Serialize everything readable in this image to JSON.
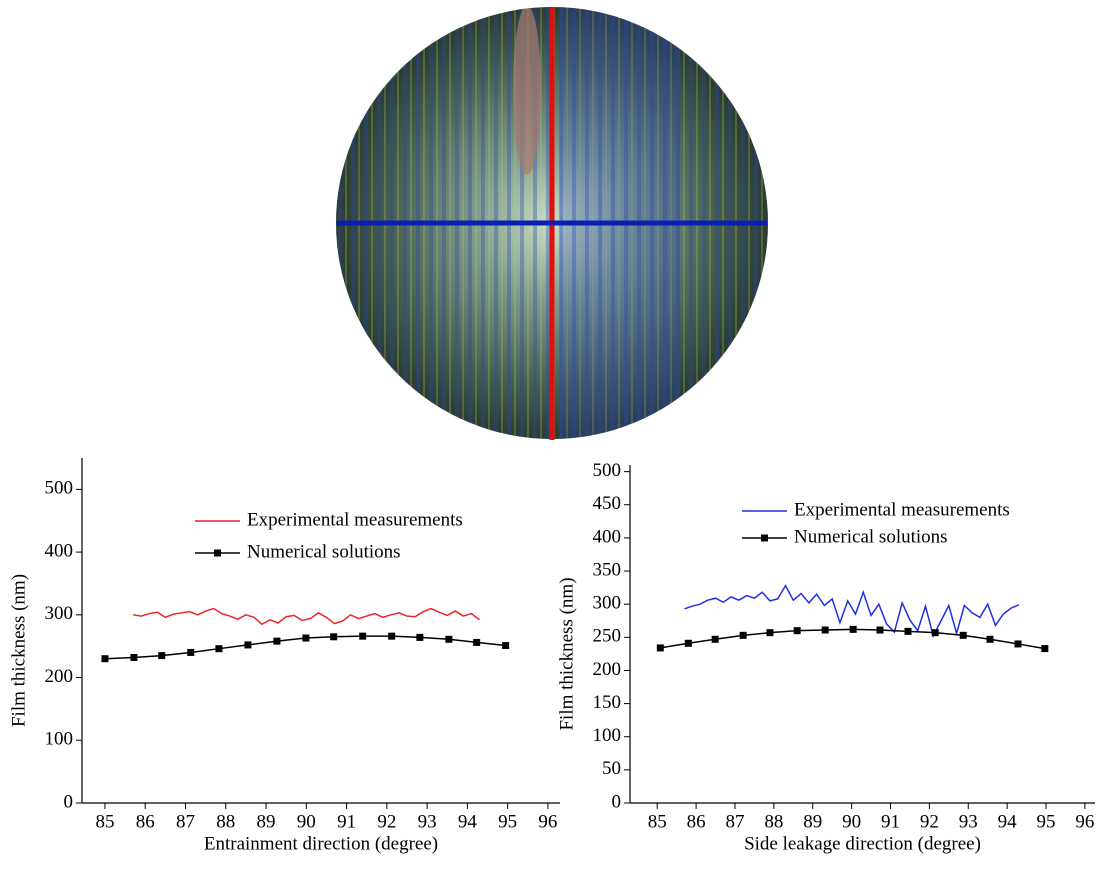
{
  "chart_data": [
    {
      "type": "line",
      "xlabel": "Entrainment direction (degree)",
      "ylabel": "Film thickness (nm)",
      "xlim": [
        84.43,
        96.3
      ],
      "ylim": [
        0,
        550
      ],
      "xticks": [
        85,
        86,
        87,
        88,
        89,
        90,
        91,
        92,
        93,
        94,
        95,
        96
      ],
      "yticks": [
        0,
        100,
        200,
        300,
        400,
        500
      ],
      "legend": "upper center",
      "series": [
        {
          "name": "Experimental measurements",
          "color": "#e8242a",
          "marker": "none",
          "x": [
            85.7,
            85.9,
            86.1,
            86.3,
            86.5,
            86.7,
            86.9,
            87.1,
            87.3,
            87.5,
            87.7,
            87.9,
            88.1,
            88.3,
            88.5,
            88.7,
            88.9,
            89.1,
            89.3,
            89.5,
            89.7,
            89.9,
            90.1,
            90.3,
            90.5,
            90.7,
            90.9,
            91.1,
            91.3,
            91.5,
            91.7,
            91.9,
            92.1,
            92.3,
            92.5,
            92.7,
            92.9,
            93.1,
            93.3,
            93.5,
            93.7,
            93.9,
            94.1,
            94.3
          ],
          "values": [
            300,
            298,
            302,
            304,
            296,
            301,
            303,
            305,
            300,
            306,
            310,
            302,
            298,
            293,
            300,
            296,
            285,
            292,
            287,
            297,
            299,
            291,
            294,
            303,
            296,
            286,
            290,
            300,
            294,
            298,
            302,
            296,
            300,
            303,
            298,
            297,
            305,
            310,
            304,
            299,
            306,
            298,
            302,
            292
          ]
        },
        {
          "name": "Numerical solutions",
          "color": "#000000",
          "marker": "square",
          "x": [
            85.0,
            85.72,
            86.41,
            87.13,
            87.83,
            88.55,
            89.27,
            89.99,
            90.68,
            91.4,
            92.12,
            92.82,
            93.54,
            94.23,
            94.95
          ],
          "values": [
            230,
            232,
            235,
            240,
            246,
            252,
            258,
            263,
            265,
            266,
            266,
            264,
            261,
            256,
            251
          ]
        }
      ]
    },
    {
      "type": "line",
      "xlabel": "Side leakage direction (degree)",
      "ylabel": "Film thickness (nm)",
      "xlim": [
        84.3,
        96.26
      ],
      "ylim": [
        0,
        510
      ],
      "xticks": [
        85,
        86,
        87,
        88,
        89,
        90,
        91,
        92,
        93,
        94,
        95,
        96
      ],
      "yticks": [
        0,
        50,
        100,
        150,
        200,
        250,
        300,
        350,
        400,
        450,
        500
      ],
      "legend": "upper center",
      "series": [
        {
          "name": "Experimental measurements",
          "color": "#1f2fe0",
          "marker": "none",
          "x": [
            85.7,
            85.9,
            86.1,
            86.3,
            86.5,
            86.7,
            86.9,
            87.1,
            87.3,
            87.5,
            87.7,
            87.9,
            88.1,
            88.3,
            88.5,
            88.7,
            88.9,
            89.1,
            89.3,
            89.5,
            89.7,
            89.9,
            90.1,
            90.3,
            90.5,
            90.7,
            90.9,
            91.1,
            91.3,
            91.5,
            91.7,
            91.9,
            92.1,
            92.3,
            92.5,
            92.7,
            92.9,
            93.1,
            93.3,
            93.5,
            93.7,
            93.9,
            94.1,
            94.3
          ],
          "values": [
            293,
            297,
            300,
            306,
            309,
            303,
            311,
            306,
            313,
            309,
            318,
            305,
            308,
            328,
            306,
            316,
            302,
            315,
            298,
            308,
            272,
            305,
            285,
            318,
            283,
            300,
            270,
            258,
            302,
            276,
            260,
            297,
            252,
            275,
            298,
            256,
            298,
            287,
            280,
            300,
            268,
            285,
            294,
            299
          ]
        },
        {
          "name": "Numerical solutions",
          "color": "#000000",
          "marker": "square",
          "x": [
            85.08,
            85.8,
            86.49,
            87.21,
            87.9,
            88.6,
            89.32,
            90.04,
            90.73,
            91.45,
            92.15,
            92.87,
            93.56,
            94.28,
            94.97
          ],
          "values": [
            234,
            241,
            247,
            253,
            257,
            260,
            261,
            262,
            261,
            259,
            257,
            253,
            247,
            240,
            233
          ]
        }
      ]
    }
  ]
}
